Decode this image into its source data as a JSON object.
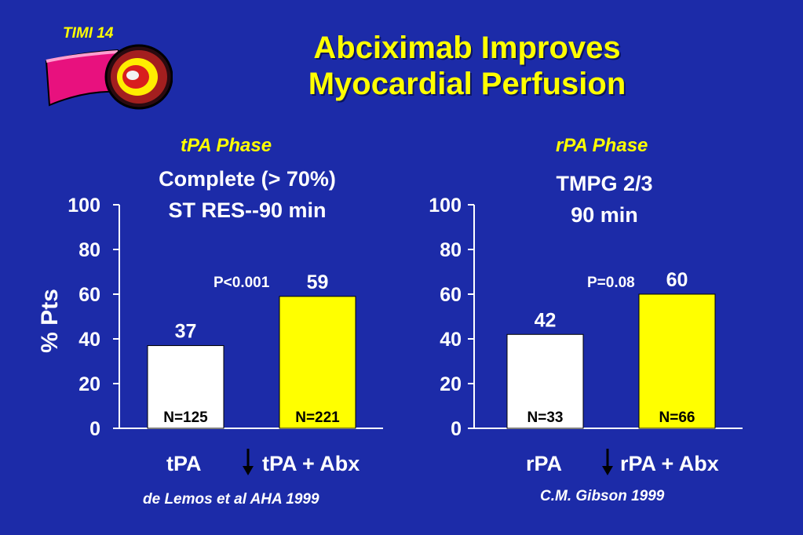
{
  "header": {
    "badge": "TIMI 14",
    "title_line1": "Abciximab Improves",
    "title_line2": "Myocardial Perfusion"
  },
  "y_axis_label": "% Pts",
  "colors": {
    "background": "#1c2ba8",
    "title": "#ffff00",
    "bar_control": "#ffffff",
    "bar_treatment": "#ffff00"
  },
  "icons": {
    "artery": "artery-clot-icon",
    "arrow": "down-arrow-icon"
  },
  "chart_data": [
    {
      "type": "bar",
      "phase": "tPA Phase",
      "subtitle_line1": "Complete (> 70%)",
      "subtitle_line2": "ST RES--90 min",
      "categories": [
        "tPA",
        "tPA + Abx"
      ],
      "values": [
        37,
        59
      ],
      "value_labels": [
        "37",
        "59"
      ],
      "n_labels": [
        "N=125",
        "N=221"
      ],
      "ylabel": "% Pts",
      "ylim": [
        0,
        100
      ],
      "yticks": [
        "0",
        "20",
        "40",
        "60",
        "80",
        "100"
      ],
      "p_value": "P<0.001",
      "citation": "de Lemos et al   AHA 1999"
    },
    {
      "type": "bar",
      "phase": "rPA Phase",
      "subtitle_line1": "TMPG 2/3",
      "subtitle_line2": "90 min",
      "categories": [
        "rPA",
        "rPA + Abx"
      ],
      "values": [
        42,
        60
      ],
      "value_labels": [
        "42",
        "60"
      ],
      "n_labels": [
        "N=33",
        "N=66"
      ],
      "ylim": [
        0,
        100
      ],
      "yticks": [
        "0",
        "20",
        "40",
        "60",
        "80",
        "100"
      ],
      "p_value": "P=0.08",
      "citation": "C.M. Gibson   1999"
    }
  ]
}
